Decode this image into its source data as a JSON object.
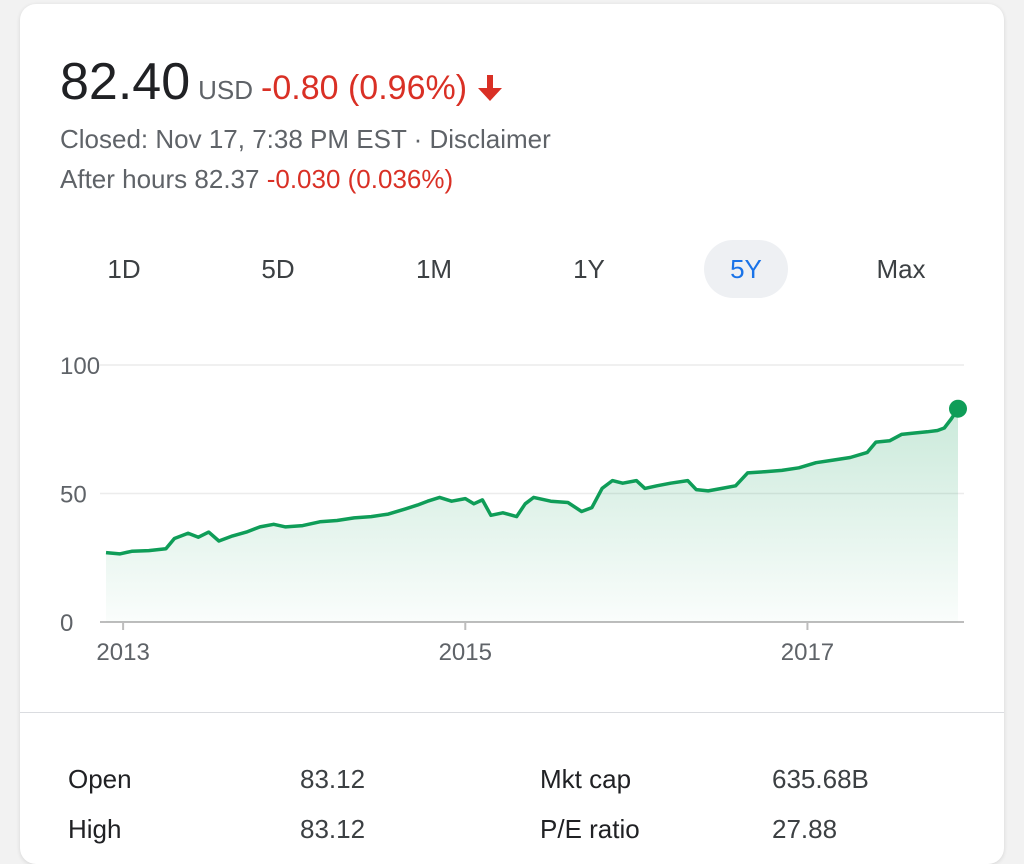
{
  "quote": {
    "price": "82.40",
    "currency": "USD",
    "change": "-0.80 (0.96%)",
    "closed_text": "Closed: Nov 17, 7:38 PM EST · Disclaimer",
    "after_hours_label": "After hours 82.37",
    "after_hours_change": "-0.030 (0.036%)",
    "colors": {
      "negative": "#d93025",
      "positive": "#0f9d58",
      "active_tab": "#1a73e8"
    }
  },
  "tabs": [
    {
      "label": "1D",
      "active": false
    },
    {
      "label": "5D",
      "active": false
    },
    {
      "label": "1M",
      "active": false
    },
    {
      "label": "1Y",
      "active": false
    },
    {
      "label": "5Y",
      "active": true
    },
    {
      "label": "Max",
      "active": false
    }
  ],
  "chart_data": {
    "type": "area",
    "title": "",
    "xlabel": "",
    "ylabel": "",
    "ylim": [
      0,
      100
    ],
    "xlim": [
      2012.9,
      2017.88
    ],
    "y_ticks": [
      "100",
      "50",
      "0"
    ],
    "x_ticks": [
      "2013",
      "2015",
      "2017"
    ],
    "grid": true,
    "series": [
      {
        "color": "#0f9d58",
        "points": [
          [
            2012.9,
            27
          ],
          [
            2012.98,
            26.5
          ],
          [
            2013.05,
            27.5
          ],
          [
            2013.15,
            27.8
          ],
          [
            2013.25,
            28.5
          ],
          [
            2013.3,
            32.5
          ],
          [
            2013.38,
            34.5
          ],
          [
            2013.44,
            33
          ],
          [
            2013.5,
            35
          ],
          [
            2013.56,
            31.5
          ],
          [
            2013.64,
            33.5
          ],
          [
            2013.72,
            35
          ],
          [
            2013.8,
            37
          ],
          [
            2013.88,
            38
          ],
          [
            2013.95,
            37
          ],
          [
            2014.05,
            37.5
          ],
          [
            2014.15,
            39
          ],
          [
            2014.25,
            39.5
          ],
          [
            2014.35,
            40.5
          ],
          [
            2014.45,
            41
          ],
          [
            2014.55,
            42
          ],
          [
            2014.65,
            44
          ],
          [
            2014.72,
            45.5
          ],
          [
            2014.78,
            47
          ],
          [
            2014.85,
            48.5
          ],
          [
            2014.92,
            47
          ],
          [
            2015.0,
            48
          ],
          [
            2015.05,
            46
          ],
          [
            2015.1,
            47.5
          ],
          [
            2015.15,
            41.5
          ],
          [
            2015.22,
            42.5
          ],
          [
            2015.3,
            41
          ],
          [
            2015.35,
            46
          ],
          [
            2015.4,
            48.5
          ],
          [
            2015.5,
            47
          ],
          [
            2015.6,
            46.5
          ],
          [
            2015.68,
            43
          ],
          [
            2015.74,
            44.5
          ],
          [
            2015.8,
            52
          ],
          [
            2015.86,
            55
          ],
          [
            2015.92,
            54
          ],
          [
            2016.0,
            55
          ],
          [
            2016.05,
            52
          ],
          [
            2016.12,
            53
          ],
          [
            2016.2,
            54
          ],
          [
            2016.3,
            55
          ],
          [
            2016.35,
            51.5
          ],
          [
            2016.42,
            51
          ],
          [
            2016.5,
            52
          ],
          [
            2016.58,
            53
          ],
          [
            2016.65,
            58
          ],
          [
            2016.75,
            58.5
          ],
          [
            2016.85,
            59
          ],
          [
            2016.95,
            60
          ],
          [
            2017.05,
            62
          ],
          [
            2017.15,
            63
          ],
          [
            2017.25,
            64
          ],
          [
            2017.35,
            66
          ],
          [
            2017.4,
            70
          ],
          [
            2017.48,
            70.5
          ],
          [
            2017.55,
            73
          ],
          [
            2017.62,
            73.5
          ],
          [
            2017.7,
            74
          ],
          [
            2017.76,
            74.5
          ],
          [
            2017.8,
            75.5
          ],
          [
            2017.84,
            79
          ],
          [
            2017.88,
            83
          ]
        ]
      }
    ]
  },
  "stats": [
    {
      "label": "Open",
      "value": "83.12"
    },
    {
      "label": "Mkt cap",
      "value": "635.68B"
    },
    {
      "label": "High",
      "value": "83.12"
    },
    {
      "label": "P/E ratio",
      "value": "27.88"
    }
  ]
}
